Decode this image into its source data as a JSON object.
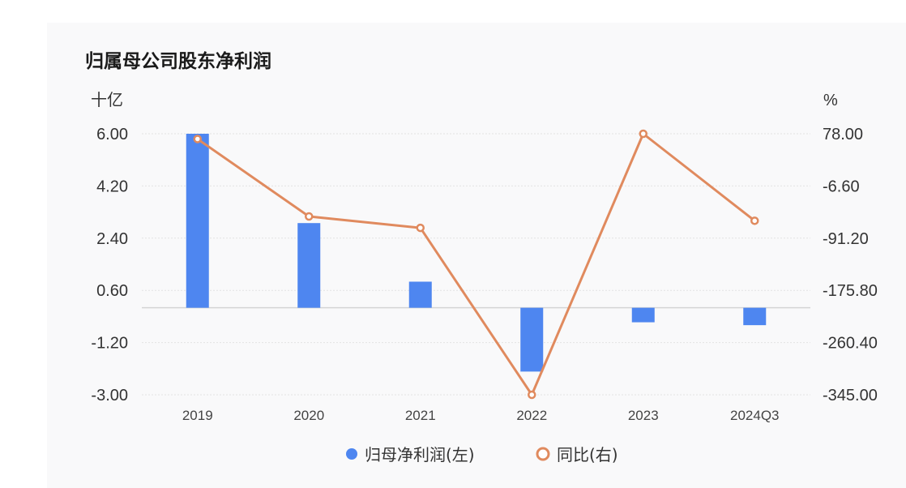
{
  "chart_data": {
    "type": "bar+line",
    "title": "归属母公司股东净利润",
    "left_unit": "十亿",
    "right_unit": "%",
    "categories": [
      "2019",
      "2020",
      "2021",
      "2022",
      "2023",
      "2024Q3"
    ],
    "left_axis": {
      "ticks": [
        "6.00",
        "4.20",
        "2.40",
        "0.60",
        "-1.20",
        "-3.00"
      ],
      "ylim": [
        -3.0,
        6.0
      ]
    },
    "right_axis": {
      "ticks": [
        "78.00",
        "-6.60",
        "-91.20",
        "-175.80",
        "-260.40",
        "-345.00"
      ],
      "ylim": [
        -345.0,
        78.0
      ]
    },
    "series": [
      {
        "name": "归母净利润(左)",
        "type": "bar",
        "axis": "left",
        "color": "#4e86f0",
        "values": [
          6.0,
          2.92,
          0.9,
          -2.2,
          -0.5,
          -0.6
        ]
      },
      {
        "name": "同比(右)",
        "type": "line",
        "axis": "right",
        "color": "#e08a5e",
        "values": [
          69.5,
          -56.0,
          -74.5,
          -345.0,
          78.0,
          -63.0
        ]
      }
    ],
    "grid": true,
    "legend_position": "bottom"
  }
}
